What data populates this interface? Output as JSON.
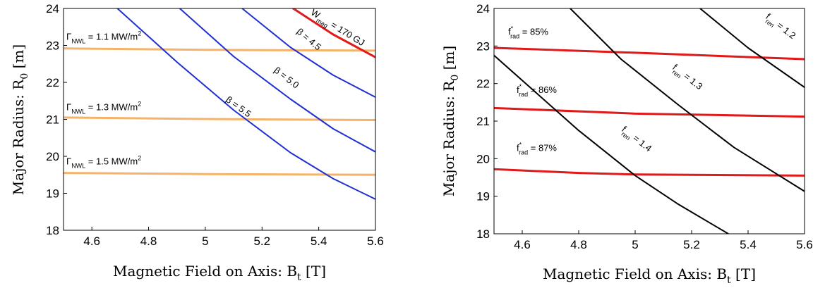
{
  "chart_data": [
    {
      "type": "line",
      "xlabel_main": "Magnetic Field on Axis: B",
      "xlabel_sub": "t",
      "xlabel_unit": " [T]",
      "ylabel_main": "Major Radius: R",
      "ylabel_sub": "0",
      "ylabel_unit": " [m]",
      "xlim": [
        4.5,
        5.6
      ],
      "ylim": [
        18,
        24
      ],
      "xticks": [
        4.6,
        4.8,
        5,
        5.2,
        5.4,
        5.6
      ],
      "xtick_labels": [
        "4.6",
        "4.8",
        "5",
        "5.2",
        "5.4",
        "5.6"
      ],
      "yticks": [
        18,
        19,
        20,
        21,
        22,
        23,
        24
      ],
      "ytick_labels": [
        "18",
        "19",
        "20",
        "21",
        "22",
        "23",
        "24"
      ],
      "grid": false,
      "series": [
        {
          "color": "#f5b26b",
          "width": 3,
          "x": [
            4.5,
            5.0,
            5.6
          ],
          "y": [
            22.92,
            22.88,
            22.86
          ]
        },
        {
          "color": "#f5b26b",
          "width": 3,
          "x": [
            4.5,
            5.0,
            5.6
          ],
          "y": [
            21.05,
            21.01,
            20.98
          ]
        },
        {
          "color": "#f5b26b",
          "width": 3,
          "x": [
            4.5,
            5.0,
            5.6
          ],
          "y": [
            19.55,
            19.52,
            19.5
          ]
        },
        {
          "color": "#1f2fd1",
          "width": 2,
          "x": [
            4.69,
            4.9,
            5.1,
            5.3,
            5.45,
            5.6
          ],
          "y": [
            24.0,
            22.55,
            21.25,
            20.1,
            19.4,
            18.84
          ]
        },
        {
          "color": "#1f2fd1",
          "width": 2,
          "x": [
            4.91,
            5.1,
            5.3,
            5.45,
            5.6
          ],
          "y": [
            24.0,
            22.7,
            21.55,
            20.75,
            20.12
          ]
        },
        {
          "color": "#1f2fd1",
          "width": 2,
          "x": [
            5.13,
            5.3,
            5.45,
            5.6
          ],
          "y": [
            24.0,
            22.95,
            22.2,
            21.6
          ]
        },
        {
          "color": "#e0191b",
          "width": 3,
          "x": [
            5.31,
            5.45,
            5.6
          ],
          "y": [
            24.0,
            23.3,
            22.68
          ]
        }
      ],
      "annotations": [
        {
          "text": "Γ",
          "sub": "NWL",
          "tail": " = 1.1 MW/m",
          "sup": "2",
          "x": 4.51,
          "y": 23.15,
          "rotate": 0
        },
        {
          "text": "Γ",
          "sub": "NWL",
          "tail": " = 1.3 MW/m",
          "sup": "2",
          "x": 4.51,
          "y": 21.25,
          "rotate": 0
        },
        {
          "text": "Γ",
          "sub": "NWL",
          "tail": " = 1.5 MW/m",
          "sup": "2",
          "x": 4.51,
          "y": 19.78,
          "rotate": 0
        },
        {
          "text": "β = 5.5",
          "sub": "",
          "tail": "",
          "sup": "",
          "x": 5.07,
          "y": 21.5,
          "rotate": 36
        },
        {
          "text": "β = 5.0",
          "sub": "",
          "tail": "",
          "sup": "",
          "x": 5.24,
          "y": 22.3,
          "rotate": 38
        },
        {
          "text": "β = 4.5",
          "sub": "",
          "tail": "",
          "sup": "",
          "x": 5.32,
          "y": 23.35,
          "rotate": 40
        },
        {
          "text": "W",
          "sub": "mag",
          "tail": " = 170 GJ",
          "sup": "",
          "x": 5.37,
          "y": 23.85,
          "rotate": 32
        }
      ]
    },
    {
      "type": "line",
      "xlabel_main": "Magnetic Field on Axis: B",
      "xlabel_sub": "t",
      "xlabel_unit": " [T]",
      "ylabel_main": "Major Radius: R",
      "ylabel_sub": "0",
      "ylabel_unit": " [m]",
      "xlim": [
        4.5,
        5.6
      ],
      "ylim": [
        18,
        24
      ],
      "xticks": [
        4.6,
        4.8,
        5,
        5.2,
        5.4,
        5.6
      ],
      "xtick_labels": [
        "4.6",
        "4.8",
        "5",
        "5.2",
        "5.4",
        "5.6"
      ],
      "yticks": [
        18,
        19,
        20,
        21,
        22,
        23,
        24
      ],
      "ytick_labels": [
        "18",
        "19",
        "20",
        "21",
        "22",
        "23",
        "24"
      ],
      "grid": false,
      "series": [
        {
          "color": "#e0191b",
          "width": 3,
          "x": [
            4.5,
            5.0,
            5.6
          ],
          "y": [
            22.95,
            22.82,
            22.65
          ]
        },
        {
          "color": "#e0191b",
          "width": 3,
          "x": [
            4.5,
            5.0,
            5.6
          ],
          "y": [
            21.35,
            21.2,
            21.12
          ]
        },
        {
          "color": "#e0191b",
          "width": 3,
          "x": [
            4.5,
            4.8,
            5.0,
            5.6
          ],
          "y": [
            19.72,
            19.62,
            19.58,
            19.55
          ]
        },
        {
          "color": "#000000",
          "width": 2,
          "x": [
            4.5,
            4.65,
            4.8,
            5.0,
            5.15,
            5.33
          ],
          "y": [
            22.75,
            21.75,
            20.75,
            19.55,
            18.8,
            18.0
          ]
        },
        {
          "color": "#000000",
          "width": 2,
          "x": [
            4.77,
            4.95,
            5.15,
            5.35,
            5.6
          ],
          "y": [
            24.0,
            22.65,
            21.45,
            20.3,
            19.13
          ]
        },
        {
          "color": "#000000",
          "width": 2,
          "x": [
            5.23,
            5.4,
            5.6
          ],
          "y": [
            24.0,
            22.95,
            21.9
          ]
        }
      ],
      "annotations": [
        {
          "text": "f",
          "supstar": "*",
          "sub": "rad",
          "tail": " = 85%",
          "x": 4.55,
          "y": 23.3,
          "rotate": 0
        },
        {
          "text": "f",
          "supstar": "*",
          "sub": "rad",
          "tail": " = 86%",
          "x": 4.58,
          "y": 21.75,
          "rotate": 0
        },
        {
          "text": "f",
          "supstar": "*",
          "sub": "rad",
          "tail": " = 87%",
          "x": 4.58,
          "y": 20.2,
          "rotate": 0
        },
        {
          "text": "f",
          "supstar": "",
          "sub": "ren",
          "tail": " = 1.4",
          "x": 4.95,
          "y": 20.75,
          "rotate": 38
        },
        {
          "text": "f",
          "supstar": "",
          "sub": "ren",
          "tail": " = 1.3",
          "x": 5.13,
          "y": 22.4,
          "rotate": 38
        },
        {
          "text": "f",
          "supstar": "",
          "sub": "ren",
          "tail": " = 1.2",
          "x": 5.46,
          "y": 23.75,
          "rotate": 38
        }
      ]
    }
  ]
}
